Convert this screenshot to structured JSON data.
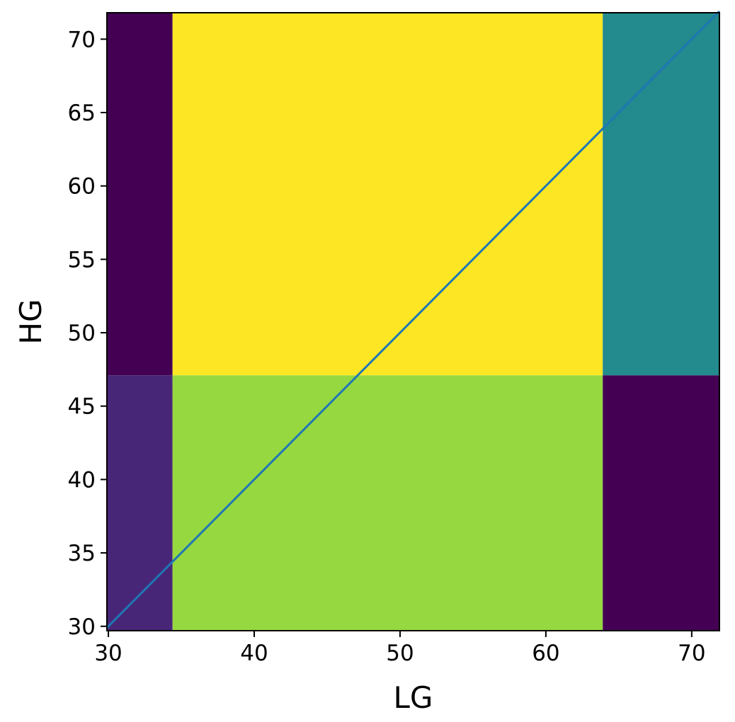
{
  "chart_data": {
    "type": "heatmap",
    "title": "",
    "xlabel": "LG",
    "ylabel": "HG",
    "xlim": [
      29.9,
      71.9
    ],
    "ylim": [
      29.7,
      71.8
    ],
    "x_ticks": [
      30,
      40,
      50,
      60,
      70
    ],
    "y_ticks": [
      30,
      35,
      40,
      45,
      50,
      55,
      60,
      65,
      70
    ],
    "x_edges": [
      29.9,
      34.4,
      63.9,
      71.9
    ],
    "y_edges": [
      29.7,
      47.1,
      71.8
    ],
    "cell_colors": [
      [
        "#482677",
        "#95d840",
        "#440154"
      ],
      [
        "#440154",
        "#fde725",
        "#238a8d"
      ]
    ],
    "diagonal_line": {
      "x": [
        29.9,
        71.9
      ],
      "y": [
        29.9,
        71.9
      ],
      "color": "#1f77b4"
    },
    "grid": false,
    "legend": "none"
  }
}
